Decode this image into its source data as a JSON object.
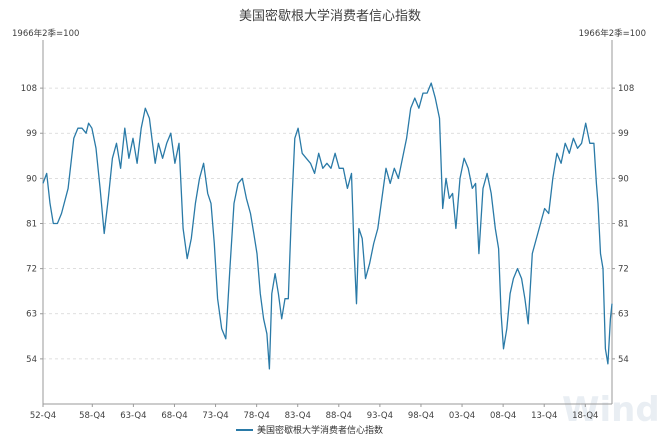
{
  "chart_data": {
    "type": "line",
    "title": "美国密歇根大学消费者信心指数",
    "unit_left": "1966年2季=100",
    "unit_right": "1966年2季=100",
    "y_ticks": [
      54,
      63,
      72,
      81,
      90,
      99,
      108
    ],
    "ylim": [
      45,
      116
    ],
    "x_ticks": [
      "52-Q4",
      "58-Q4",
      "63-Q4",
      "68-Q4",
      "73-Q4",
      "78-Q4",
      "83-Q4",
      "88-Q4",
      "93-Q4",
      "98-Q4",
      "03-Q4",
      "08-Q4",
      "13-Q4",
      "18-Q4"
    ],
    "xlim": [
      1952.75,
      2022.0
    ],
    "grid": "horizontal-dashed",
    "legend_position": "bottom",
    "series": [
      {
        "name": "美国密歇根大学消费者信心指数",
        "color": "#2a7aa7",
        "x": [
          1952.75,
          1953.2,
          1953.6,
          1954.0,
          1954.5,
          1955.0,
          1955.8,
          1956.5,
          1957.0,
          1957.5,
          1958.0,
          1958.3,
          1958.7,
          1959.2,
          1959.7,
          1960.2,
          1960.7,
          1961.2,
          1961.7,
          1962.2,
          1962.7,
          1963.2,
          1963.7,
          1964.2,
          1964.7,
          1965.2,
          1965.7,
          1966.0,
          1966.4,
          1966.8,
          1967.3,
          1967.8,
          1968.3,
          1968.8,
          1969.3,
          1969.8,
          1970.3,
          1970.8,
          1971.3,
          1971.8,
          1972.3,
          1972.8,
          1973.2,
          1973.6,
          1974.0,
          1974.5,
          1975.0,
          1975.5,
          1976.0,
          1976.5,
          1977.0,
          1977.5,
          1978.0,
          1978.4,
          1978.8,
          1979.2,
          1979.6,
          1980.0,
          1980.3,
          1980.6,
          1981.0,
          1981.4,
          1981.8,
          1982.2,
          1982.6,
          1983.0,
          1983.4,
          1983.8,
          1984.3,
          1984.8,
          1985.3,
          1985.8,
          1986.3,
          1986.8,
          1987.3,
          1987.8,
          1988.3,
          1988.8,
          1989.3,
          1989.8,
          1990.3,
          1990.6,
          1990.9,
          1991.2,
          1991.6,
          1992.0,
          1992.5,
          1993.0,
          1993.5,
          1994.0,
          1994.5,
          1995.0,
          1995.5,
          1996.0,
          1996.5,
          1997.0,
          1997.5,
          1998.0,
          1998.5,
          1999.0,
          1999.5,
          2000.0,
          2000.5,
          2001.0,
          2001.4,
          2001.8,
          2002.2,
          2002.6,
          2003.0,
          2003.5,
          2004.0,
          2004.5,
          2005.0,
          2005.4,
          2005.8,
          2006.3,
          2006.8,
          2007.3,
          2007.8,
          2008.2,
          2008.5,
          2008.8,
          2009.2,
          2009.6,
          2010.0,
          2010.5,
          2011.0,
          2011.4,
          2011.8,
          2012.3,
          2012.8,
          2013.3,
          2013.8,
          2014.3,
          2014.8,
          2015.3,
          2015.8,
          2016.3,
          2016.8,
          2017.3,
          2017.8,
          2018.3,
          2018.8,
          2019.3,
          2019.8,
          2020.1,
          2020.3,
          2020.6,
          2020.9,
          2021.2,
          2021.5,
          2021.8,
          2022.0
        ],
        "values": [
          89,
          91,
          85,
          81,
          81,
          83,
          88,
          98,
          100,
          100,
          99,
          101,
          100,
          96,
          88,
          79,
          86,
          94,
          97,
          92,
          100,
          94,
          98,
          93,
          100,
          104,
          102,
          98,
          93,
          97,
          94,
          97,
          99,
          93,
          97,
          80,
          74,
          78,
          85,
          90,
          93,
          87,
          85,
          77,
          66,
          60,
          58,
          72,
          85,
          89,
          90,
          86,
          83,
          79,
          75,
          67,
          62,
          59,
          52,
          67,
          71,
          67,
          62,
          66,
          66,
          84,
          98,
          100,
          95,
          94,
          93,
          91,
          95,
          92,
          93,
          92,
          95,
          92,
          92,
          88,
          91,
          76,
          65,
          80,
          78,
          70,
          73,
          77,
          80,
          86,
          92,
          89,
          92,
          90,
          94,
          98,
          104,
          106,
          104,
          107,
          107,
          109,
          106,
          102,
          84,
          90,
          86,
          87,
          80,
          90,
          94,
          92,
          88,
          89,
          75,
          88,
          91,
          87,
          80,
          76,
          63,
          56,
          60,
          67,
          70,
          72,
          70,
          66,
          61,
          75,
          78,
          81,
          84,
          83,
          90,
          95,
          93,
          97,
          95,
          98,
          96,
          97,
          101,
          97,
          97,
          89,
          85,
          75,
          72,
          56,
          53,
          62,
          65
        ]
      }
    ]
  },
  "legend": {
    "label": "美国密歇根大学消费者信心指数"
  },
  "watermark": "Wind"
}
